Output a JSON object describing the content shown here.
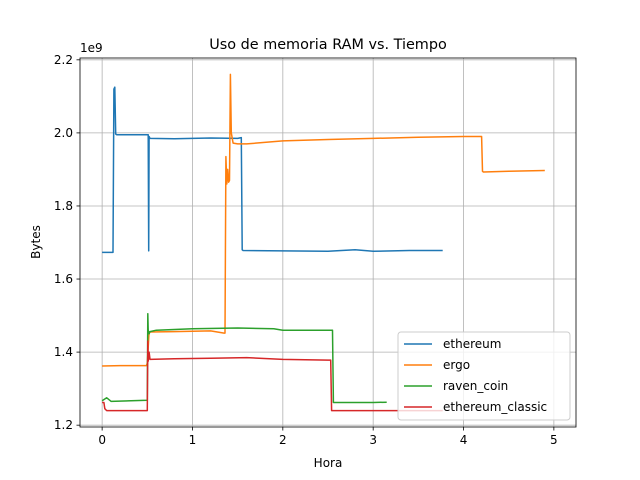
{
  "chart_data": {
    "type": "line",
    "title": "Uso de memoria RAM vs. Tiempo",
    "xlabel": "Hora",
    "ylabel": "Bytes",
    "y_offset_label": "1e9",
    "xlim": [
      -0.245,
      5.245
    ],
    "ylim": [
      1.195,
      2.205
    ],
    "x_ticks": [
      0,
      1,
      2,
      3,
      4,
      5
    ],
    "x_tick_labels": [
      "0",
      "1",
      "2",
      "3",
      "4",
      "5"
    ],
    "y_ticks": [
      1.2,
      1.4,
      1.6,
      1.8,
      2.0,
      2.2
    ],
    "y_tick_labels": [
      "1.2",
      "1.4",
      "1.6",
      "1.8",
      "2.0",
      "2.2"
    ],
    "grid": true,
    "legend_position": "lower-right",
    "series": [
      {
        "name": "ethereum",
        "color": "#1f77b4",
        "x": [
          0,
          0.12,
          0.13,
          0.14,
          0.15,
          0.16,
          0.5,
          0.51,
          0.515,
          0.52,
          0.53,
          0.8,
          1.2,
          1.5,
          1.54,
          1.55,
          1.56,
          2.0,
          2.5,
          2.8,
          3.0,
          3.4,
          3.77
        ],
        "y": [
          1.673,
          1.673,
          2.12,
          2.125,
          1.997,
          1.995,
          1.995,
          1.995,
          1.677,
          1.99,
          1.985,
          1.984,
          1.986,
          1.985,
          1.987,
          1.68,
          1.678,
          1.677,
          1.676,
          1.68,
          1.676,
          1.678,
          1.678
        ]
      },
      {
        "name": "ergo",
        "color": "#ff7f0e",
        "x": [
          0,
          0.2,
          0.49,
          0.5,
          0.52,
          0.8,
          1.2,
          1.35,
          1.36,
          1.37,
          1.38,
          1.39,
          1.4,
          1.41,
          1.42,
          1.43,
          1.45,
          1.5,
          1.6,
          2.0,
          2.5,
          3.0,
          3.5,
          4.0,
          4.2,
          4.21,
          4.22,
          4.5,
          4.9
        ],
        "y": [
          1.362,
          1.363,
          1.363,
          1.37,
          1.455,
          1.456,
          1.458,
          1.452,
          1.452,
          1.935,
          1.86,
          1.9,
          1.865,
          1.87,
          2.16,
          2.0,
          1.972,
          1.97,
          1.97,
          1.978,
          1.982,
          1.985,
          1.988,
          1.99,
          1.99,
          1.895,
          1.893,
          1.895,
          1.897
        ]
      },
      {
        "name": "raven_coin",
        "color": "#2ca02c",
        "x": [
          0,
          0.05,
          0.1,
          0.5,
          0.505,
          0.51,
          0.52,
          0.53,
          0.6,
          1.0,
          1.5,
          1.9,
          2.0,
          2.5,
          2.55,
          2.56,
          3.0,
          3.15
        ],
        "y": [
          1.267,
          1.275,
          1.265,
          1.268,
          1.505,
          1.46,
          1.45,
          1.456,
          1.46,
          1.464,
          1.466,
          1.464,
          1.46,
          1.46,
          1.46,
          1.262,
          1.262,
          1.263
        ]
      },
      {
        "name": "ethereum_classic",
        "color": "#d62728",
        "x": [
          0,
          0.02,
          0.03,
          0.05,
          0.5,
          0.505,
          0.51,
          0.52,
          0.53,
          0.8,
          1.2,
          1.6,
          2.0,
          2.5,
          2.53,
          2.54,
          3.0,
          3.5,
          3.77
        ],
        "y": [
          1.262,
          1.262,
          1.245,
          1.24,
          1.24,
          1.43,
          1.375,
          1.4,
          1.38,
          1.382,
          1.383,
          1.385,
          1.38,
          1.378,
          1.378,
          1.24,
          1.24,
          1.24,
          1.24
        ]
      }
    ]
  }
}
